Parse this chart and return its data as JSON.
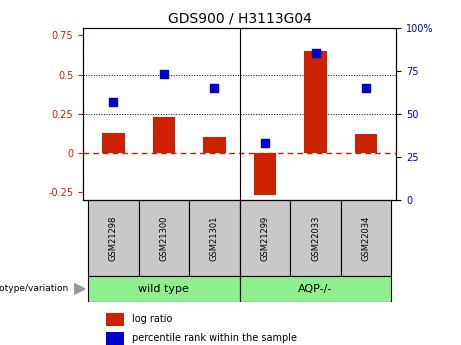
{
  "title": "GDS900 / H3113G04",
  "samples": [
    "GSM21298",
    "GSM21300",
    "GSM21301",
    "GSM21299",
    "GSM22033",
    "GSM22034"
  ],
  "log_ratio": [
    0.13,
    0.23,
    0.1,
    -0.27,
    0.65,
    0.12
  ],
  "percentile_rank": [
    57,
    73,
    65,
    33,
    85,
    65
  ],
  "bar_color": "#CC2200",
  "dot_color": "#0000CC",
  "ylim_left": [
    -0.3,
    0.8
  ],
  "ylim_right": [
    0,
    100
  ],
  "yticks_left": [
    -0.25,
    0.0,
    0.25,
    0.5,
    0.75
  ],
  "yticks_right": [
    0,
    25,
    50,
    75,
    100
  ],
  "hline_zero_color": "#BB2200",
  "hline_dotted_values": [
    0.25,
    0.5
  ],
  "dot_size": 40,
  "bar_width": 0.45,
  "group_labels": [
    "wild type",
    "AQP-/-"
  ],
  "group_color": "#90EE90",
  "legend_items": [
    "log ratio",
    "percentile rank within the sample"
  ],
  "legend_colors": [
    "#CC2200",
    "#0000CC"
  ],
  "label_color_left": "#CC2200",
  "label_color_right": "#0000CC",
  "sample_box_color": "#C8C8C8",
  "group_label_text": "genotype/variation"
}
